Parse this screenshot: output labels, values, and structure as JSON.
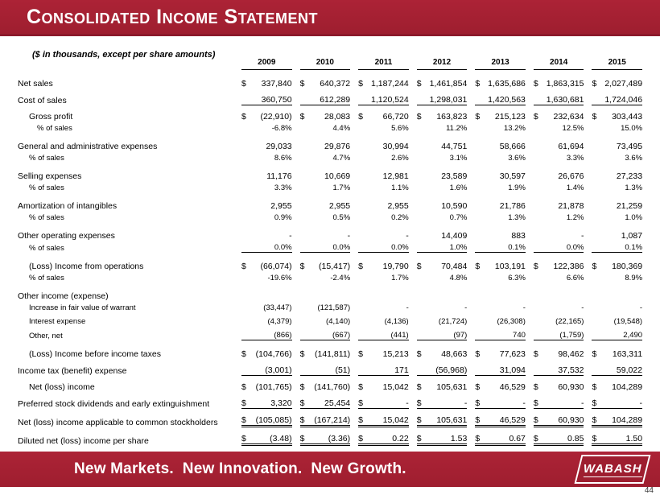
{
  "slide": {
    "title": "Consolidated Income Statement",
    "note": "($ in thousands, except per share amounts)",
    "tagline": "New Markets.  New Innovation.  New Growth.",
    "logo_text": "WABASH",
    "page_number": "44",
    "brand_red": "#A32035"
  },
  "table": {
    "years": [
      "2009",
      "2010",
      "2011",
      "2012",
      "2013",
      "2014",
      "2015"
    ],
    "rows": [
      {
        "label": "Net sales",
        "indent": 0,
        "dollar": true,
        "sub": false,
        "underline": "none",
        "values": [
          "337,840",
          "640,372",
          "1,187,244",
          "1,461,854",
          "1,635,686",
          "1,863,315",
          "2,027,489"
        ]
      },
      {
        "label": "Cost of sales",
        "indent": 0,
        "dollar": false,
        "sub": false,
        "underline": "single",
        "values": [
          "360,750",
          "612,289",
          "1,120,524",
          "1,298,031",
          "1,420,563",
          "1,630,681",
          "1,724,046"
        ]
      },
      {
        "label": "Gross profit",
        "indent": 1,
        "dollar": true,
        "sub": false,
        "underline": "none",
        "values": [
          "(22,910)",
          "28,083",
          "66,720",
          "163,823",
          "215,123",
          "232,634",
          "303,443"
        ]
      },
      {
        "label": "% of sales",
        "indent": 2,
        "dollar": false,
        "sub": true,
        "underline": "none",
        "values": [
          "-6.8%",
          "4.4%",
          "5.6%",
          "11.2%",
          "13.2%",
          "12.5%",
          "15.0%"
        ]
      },
      {
        "label": "General and administrative expenses",
        "indent": 0,
        "dollar": false,
        "sub": false,
        "underline": "none",
        "values": [
          "29,033",
          "29,876",
          "30,994",
          "44,751",
          "58,666",
          "61,694",
          "73,495"
        ]
      },
      {
        "label": "% of sales",
        "indent": 1,
        "dollar": false,
        "sub": true,
        "underline": "none",
        "values": [
          "8.6%",
          "4.7%",
          "2.6%",
          "3.1%",
          "3.6%",
          "3.3%",
          "3.6%"
        ]
      },
      {
        "label": "Selling expenses",
        "indent": 0,
        "dollar": false,
        "sub": false,
        "underline": "none",
        "values": [
          "11,176",
          "10,669",
          "12,981",
          "23,589",
          "30,597",
          "26,676",
          "27,233"
        ]
      },
      {
        "label": "% of sales",
        "indent": 1,
        "dollar": false,
        "sub": true,
        "underline": "none",
        "values": [
          "3.3%",
          "1.7%",
          "1.1%",
          "1.6%",
          "1.9%",
          "1.4%",
          "1.3%"
        ]
      },
      {
        "label": "Amortization of intangibles",
        "indent": 0,
        "dollar": false,
        "sub": false,
        "underline": "none",
        "values": [
          "2,955",
          "2,955",
          "2,955",
          "10,590",
          "21,786",
          "21,878",
          "21,259"
        ]
      },
      {
        "label": "% of sales",
        "indent": 1,
        "dollar": false,
        "sub": true,
        "underline": "none",
        "values": [
          "0.9%",
          "0.5%",
          "0.2%",
          "0.7%",
          "1.3%",
          "1.2%",
          "1.0%"
        ]
      },
      {
        "label": "Other operating expenses",
        "indent": 0,
        "dollar": false,
        "sub": false,
        "underline": "none",
        "values": [
          "-",
          "-",
          "-",
          "14,409",
          "883",
          "-",
          "1,087"
        ]
      },
      {
        "label": "% of sales",
        "indent": 1,
        "dollar": false,
        "sub": true,
        "underline": "single",
        "values": [
          "0.0%",
          "0.0%",
          "0.0%",
          "1.0%",
          "0.1%",
          "0.0%",
          "0.1%"
        ]
      },
      {
        "label": "(Loss) Income from operations",
        "indent": 1,
        "dollar": true,
        "sub": false,
        "underline": "none",
        "values": [
          "(66,074)",
          "(15,417)",
          "19,790",
          "70,484",
          "103,191",
          "122,386",
          "180,369"
        ]
      },
      {
        "label": "% of sales",
        "indent": 1,
        "dollar": false,
        "sub": true,
        "underline": "none",
        "values": [
          "-19.6%",
          "-2.4%",
          "1.7%",
          "4.8%",
          "6.3%",
          "6.6%",
          "8.9%"
        ]
      },
      {
        "label": "Other income (expense)",
        "indent": 0,
        "dollar": false,
        "sub": false,
        "underline": "none",
        "values": [
          "",
          "",
          "",
          "",
          "",
          "",
          ""
        ]
      },
      {
        "label": "Increase in fair value of warrant",
        "indent": 1,
        "dollar": false,
        "sub": true,
        "underline": "none",
        "values": [
          "(33,447)",
          "(121,587)",
          "-",
          "-",
          "-",
          "-",
          "-"
        ]
      },
      {
        "label": "Interest expense",
        "indent": 1,
        "dollar": false,
        "sub": true,
        "underline": "none",
        "values": [
          "(4,379)",
          "(4,140)",
          "(4,136)",
          "(21,724)",
          "(26,308)",
          "(22,165)",
          "(19,548)"
        ]
      },
      {
        "label": "Other, net",
        "indent": 1,
        "dollar": false,
        "sub": true,
        "underline": "single",
        "values": [
          "(866)",
          "(667)",
          "(441)",
          "(97)",
          "740",
          "(1,759)",
          "2,490"
        ]
      },
      {
        "label": "(Loss) Income before income taxes",
        "indent": 1,
        "dollar": true,
        "sub": false,
        "underline": "none",
        "values": [
          "(104,766)",
          "(141,811)",
          "15,213",
          "48,663",
          "77,623",
          "98,462",
          "163,311"
        ]
      },
      {
        "label": "Income tax (benefit) expense",
        "indent": 0,
        "dollar": false,
        "sub": false,
        "underline": "single",
        "values": [
          "(3,001)",
          "(51)",
          "171",
          "(56,968)",
          "31,094",
          "37,532",
          "59,022"
        ]
      },
      {
        "label": "Net (loss) income",
        "indent": 1,
        "dollar": true,
        "sub": false,
        "underline": "none",
        "values": [
          "(101,765)",
          "(141,760)",
          "15,042",
          "105,631",
          "46,529",
          "60,930",
          "104,289"
        ]
      },
      {
        "label": "Preferred stock dividends and early extinguishment",
        "indent": 0,
        "dollar": true,
        "sub": false,
        "underline": "single",
        "values": [
          "3,320",
          "25,454",
          "-",
          "-",
          "-",
          "-",
          "-"
        ]
      },
      {
        "label": "Net (loss) income applicable to common stockholders",
        "indent": 0,
        "dollar": true,
        "sub": false,
        "underline": "double",
        "values": [
          "(105,085)",
          "(167,214)",
          "15,042",
          "105,631",
          "46,529",
          "60,930",
          "104,289"
        ]
      },
      {
        "label": "Diluted net (loss) income per share",
        "indent": 0,
        "dollar": true,
        "sub": false,
        "underline": "double",
        "values": [
          "(3.48)",
          "(3.36)",
          "0.22",
          "1.53",
          "0.67",
          "0.85",
          "1.50"
        ]
      }
    ]
  }
}
